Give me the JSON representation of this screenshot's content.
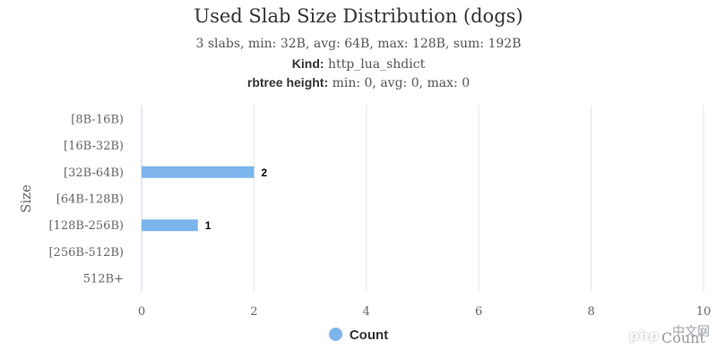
{
  "header": {
    "title": "Used Slab Size Distribution (dogs)",
    "summary": "3 slabs, min: 32B, avg: 64B, max: 128B, sum: 192B",
    "kind_label": "Kind:",
    "kind_value": "http_lua_shdict",
    "rbtree_label": "rbtree height:",
    "rbtree_value": "min: 0, avg: 0, max: 0"
  },
  "chart_data": {
    "type": "bar",
    "orientation": "horizontal",
    "title": "Used Slab Size Distribution (dogs)",
    "categories": [
      "[8B-16B)",
      "[16B-32B)",
      "[32B-64B)",
      "[64B-128B)",
      "[128B-256B)",
      "[256B-512B)",
      "512B+"
    ],
    "series": [
      {
        "name": "Count",
        "values": [
          0,
          0,
          2,
          0,
          1,
          0,
          0
        ]
      }
    ],
    "data_labels": [
      "",
      "",
      "2",
      "",
      "1",
      "",
      ""
    ],
    "ylabel": "Size",
    "xlabel": "Count",
    "xlim": [
      0,
      10
    ],
    "xticks": [
      0,
      2,
      4,
      6,
      8,
      10
    ],
    "grid": true,
    "legend": "bottom-center",
    "bar_color": "#7cb5ec"
  },
  "watermark": {
    "logo": "php",
    "text": "中文网"
  }
}
